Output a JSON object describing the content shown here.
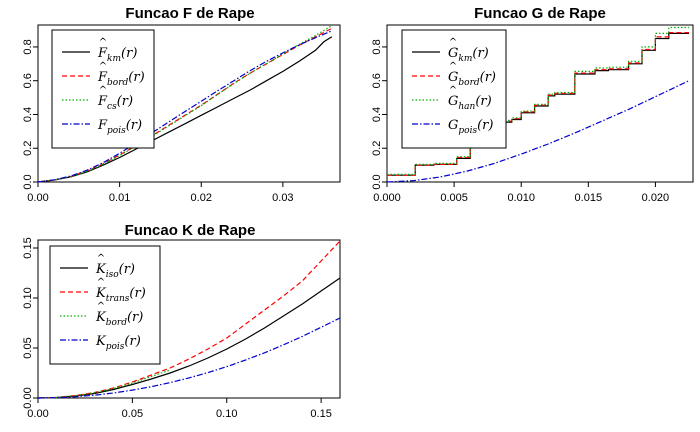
{
  "chart_data": [
    {
      "type": "line",
      "title": "Funcao F de Rape",
      "xlabel": "",
      "ylabel": "",
      "xlim": [
        0,
        0.037
      ],
      "ylim": [
        0,
        0.93
      ],
      "xticks": [
        0.0,
        0.01,
        0.02,
        0.03
      ],
      "xtick_labels": [
        "0.00",
        "0.01",
        "0.02",
        "0.03"
      ],
      "yticks": [
        0.0,
        0.2,
        0.4,
        0.6,
        0.8
      ],
      "ytick_labels": [
        "0.0",
        "0.2",
        "0.4",
        "0.6",
        "0.8"
      ],
      "legend_position": "top-left",
      "series": [
        {
          "name": "F̂_km(r)",
          "base": "F",
          "hat": true,
          "sub": "km",
          "color": "#000000",
          "dash": "",
          "x": [
            0,
            0.002,
            0.004,
            0.006,
            0.008,
            0.01,
            0.012,
            0.014,
            0.016,
            0.018,
            0.02,
            0.022,
            0.024,
            0.026,
            0.028,
            0.03,
            0.032,
            0.034,
            0.035,
            0.036
          ],
          "y": [
            0,
            0.012,
            0.03,
            0.06,
            0.1,
            0.145,
            0.195,
            0.245,
            0.295,
            0.345,
            0.395,
            0.445,
            0.495,
            0.545,
            0.6,
            0.655,
            0.715,
            0.78,
            0.83,
            0.86
          ]
        },
        {
          "name": "F̂_bord(r)",
          "base": "F",
          "hat": true,
          "sub": "bord",
          "color": "#ff0000",
          "dash": "5,3",
          "x": [
            0,
            0.002,
            0.004,
            0.006,
            0.008,
            0.01,
            0.012,
            0.014,
            0.016,
            0.018,
            0.02,
            0.022,
            0.024,
            0.026,
            0.028,
            0.03,
            0.032,
            0.034,
            0.036
          ],
          "y": [
            0,
            0.012,
            0.032,
            0.065,
            0.108,
            0.16,
            0.215,
            0.275,
            0.335,
            0.395,
            0.455,
            0.52,
            0.585,
            0.645,
            0.7,
            0.755,
            0.81,
            0.86,
            0.91
          ]
        },
        {
          "name": "F̂_cs(r)",
          "base": "F",
          "hat": true,
          "sub": "cs",
          "color": "#00b000",
          "dash": "1.5,2",
          "x": [
            0,
            0.002,
            0.004,
            0.006,
            0.008,
            0.01,
            0.012,
            0.014,
            0.016,
            0.018,
            0.02,
            0.022,
            0.024,
            0.026,
            0.028,
            0.03,
            0.032,
            0.034,
            0.036
          ],
          "y": [
            0,
            0.012,
            0.031,
            0.063,
            0.105,
            0.157,
            0.212,
            0.272,
            0.332,
            0.392,
            0.452,
            0.518,
            0.583,
            0.645,
            0.702,
            0.758,
            0.815,
            0.868,
            0.925
          ]
        },
        {
          "name": "F_pois(r)",
          "base": "F",
          "hat": false,
          "sub": "pois",
          "color": "#0000cc",
          "dash": "6,2,1.5,2",
          "x": [
            0,
            0.002,
            0.004,
            0.006,
            0.008,
            0.01,
            0.012,
            0.014,
            0.016,
            0.018,
            0.02,
            0.022,
            0.024,
            0.026,
            0.028,
            0.03,
            0.032,
            0.034,
            0.036
          ],
          "y": [
            0,
            0.013,
            0.035,
            0.07,
            0.115,
            0.17,
            0.23,
            0.292,
            0.355,
            0.417,
            0.478,
            0.54,
            0.6,
            0.66,
            0.715,
            0.765,
            0.812,
            0.855,
            0.895
          ]
        }
      ]
    },
    {
      "type": "line",
      "title": "Funcao G de Rape",
      "xlabel": "",
      "ylabel": "",
      "xlim": [
        0,
        0.0228
      ],
      "ylim": [
        0,
        0.93
      ],
      "xticks": [
        0.0,
        0.005,
        0.01,
        0.015,
        0.02
      ],
      "xtick_labels": [
        "0.000",
        "0.005",
        "0.010",
        "0.015",
        "0.020"
      ],
      "yticks": [
        0.0,
        0.2,
        0.4,
        0.6,
        0.8
      ],
      "ytick_labels": [
        "0.0",
        "0.2",
        "0.4",
        "0.6",
        "0.8"
      ],
      "legend_position": "top-left",
      "series": [
        {
          "name": "Ĝ_km(r)",
          "base": "G",
          "hat": true,
          "sub": "km",
          "color": "#000000",
          "dash": "",
          "step": true,
          "x": [
            0,
            0.0021,
            0.0035,
            0.0052,
            0.0062,
            0.007,
            0.0078,
            0.0085,
            0.0093,
            0.01,
            0.011,
            0.012,
            0.0125,
            0.014,
            0.0155,
            0.0165,
            0.018,
            0.019,
            0.02,
            0.021,
            0.0225
          ],
          "y": [
            0.04,
            0.1,
            0.105,
            0.14,
            0.205,
            0.29,
            0.33,
            0.355,
            0.37,
            0.41,
            0.45,
            0.51,
            0.52,
            0.64,
            0.66,
            0.665,
            0.7,
            0.78,
            0.85,
            0.88,
            0.88
          ]
        },
        {
          "name": "Ĝ_bord(r)",
          "base": "G",
          "hat": true,
          "sub": "bord",
          "color": "#ff0000",
          "dash": "5,3",
          "step": true,
          "x": [
            0,
            0.0021,
            0.0035,
            0.0052,
            0.0062,
            0.007,
            0.0078,
            0.0085,
            0.0093,
            0.01,
            0.011,
            0.012,
            0.0125,
            0.014,
            0.0155,
            0.0165,
            0.018,
            0.019,
            0.02,
            0.021,
            0.0225
          ],
          "y": [
            0.04,
            0.1,
            0.105,
            0.145,
            0.21,
            0.295,
            0.335,
            0.36,
            0.375,
            0.415,
            0.455,
            0.515,
            0.525,
            0.645,
            0.665,
            0.67,
            0.705,
            0.785,
            0.86,
            0.885,
            0.885
          ]
        },
        {
          "name": "Ĝ_han(r)",
          "base": "G",
          "hat": true,
          "sub": "han",
          "color": "#00b000",
          "dash": "1.5,2",
          "step": true,
          "x": [
            0,
            0.0021,
            0.0035,
            0.0052,
            0.0062,
            0.007,
            0.0078,
            0.0085,
            0.0093,
            0.01,
            0.011,
            0.012,
            0.0125,
            0.014,
            0.0155,
            0.0165,
            0.018,
            0.019,
            0.02,
            0.021,
            0.0225
          ],
          "y": [
            0.045,
            0.105,
            0.11,
            0.15,
            0.215,
            0.3,
            0.34,
            0.365,
            0.38,
            0.42,
            0.46,
            0.52,
            0.53,
            0.655,
            0.675,
            0.68,
            0.715,
            0.8,
            0.88,
            0.915,
            0.915
          ]
        },
        {
          "name": "G_pois(r)",
          "base": "G",
          "hat": false,
          "sub": "pois",
          "color": "#0000cc",
          "dash": "6,2,1.5,2",
          "x": [
            0,
            0.002,
            0.004,
            0.006,
            0.008,
            0.01,
            0.012,
            0.014,
            0.016,
            0.018,
            0.02,
            0.0225
          ],
          "y": [
            0,
            0.008,
            0.03,
            0.065,
            0.11,
            0.165,
            0.225,
            0.29,
            0.36,
            0.43,
            0.505,
            0.6
          ]
        }
      ]
    },
    {
      "type": "line",
      "title": "Funcao K de Rape",
      "xlabel": "",
      "ylabel": "",
      "xlim": [
        0,
        0.16
      ],
      "ylim": [
        0,
        0.158
      ],
      "xticks": [
        0.0,
        0.05,
        0.1,
        0.15
      ],
      "xtick_labels": [
        "0.00",
        "0.05",
        "0.10",
        "0.15"
      ],
      "yticks": [
        0.0,
        0.05,
        0.1,
        0.15
      ],
      "ytick_labels": [
        "0.00",
        "0.05",
        "0.10",
        "0.15"
      ],
      "legend_position": "top-left",
      "series": [
        {
          "name": "K̂_iso(r)",
          "base": "K",
          "hat": true,
          "sub": "iso",
          "color": "#000000",
          "dash": "",
          "x": [
            0,
            0.01,
            0.02,
            0.03,
            0.04,
            0.05,
            0.06,
            0.07,
            0.08,
            0.09,
            0.1,
            0.11,
            0.12,
            0.13,
            0.14,
            0.15,
            0.16
          ],
          "y": [
            0,
            0.0005,
            0.002,
            0.0045,
            0.0085,
            0.0135,
            0.019,
            0.025,
            0.032,
            0.04,
            0.049,
            0.059,
            0.07,
            0.082,
            0.094,
            0.107,
            0.12
          ]
        },
        {
          "name": "K̂_trans(r)",
          "base": "K",
          "hat": true,
          "sub": "trans",
          "color": "#ff0000",
          "dash": "5,3",
          "x": [
            0,
            0.01,
            0.02,
            0.03,
            0.04,
            0.05,
            0.06,
            0.07,
            0.08,
            0.09,
            0.1,
            0.11,
            0.12,
            0.13,
            0.14,
            0.15,
            0.16
          ],
          "y": [
            0,
            0.0006,
            0.0025,
            0.0055,
            0.01,
            0.016,
            0.023,
            0.03,
            0.039,
            0.049,
            0.06,
            0.074,
            0.088,
            0.102,
            0.117,
            0.137,
            0.157
          ]
        },
        {
          "name": "K̂_bord(r)",
          "base": "K",
          "hat": true,
          "sub": "bord",
          "color": "#00b000",
          "dash": "1.5,2",
          "x": [
            0,
            0.01,
            0.02,
            0.03,
            0.04,
            0.05,
            0.06,
            0.07
          ],
          "y": [
            0,
            0.0006,
            0.0024,
            0.0052,
            0.0095,
            0.015,
            0.0215,
            0.028
          ]
        },
        {
          "name": "K_pois(r)",
          "base": "K",
          "hat": false,
          "sub": "pois",
          "color": "#0000cc",
          "dash": "6,2,1.5,2",
          "x": [
            0,
            0.01,
            0.02,
            0.03,
            0.04,
            0.05,
            0.06,
            0.07,
            0.08,
            0.09,
            0.1,
            0.11,
            0.12,
            0.13,
            0.14,
            0.15,
            0.16
          ],
          "y": [
            0,
            0.0003,
            0.0013,
            0.0028,
            0.005,
            0.0079,
            0.0113,
            0.0154,
            0.0201,
            0.0254,
            0.0314,
            0.038,
            0.0452,
            0.0531,
            0.0616,
            0.0707,
            0.08
          ]
        }
      ]
    }
  ]
}
